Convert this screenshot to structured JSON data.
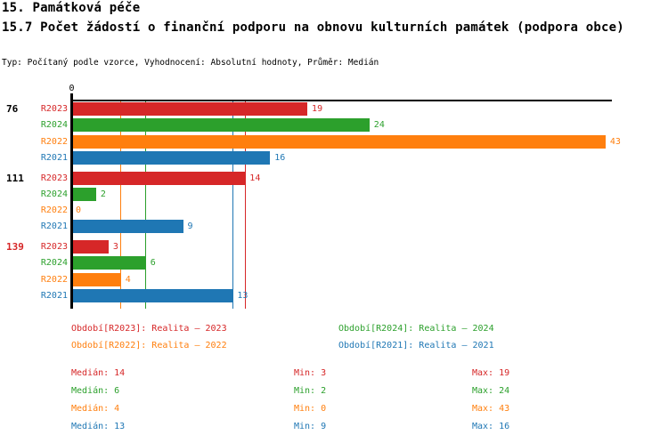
{
  "header": {
    "title_line1": "15. Památková péče",
    "title_line2": "15.7 Počet žádostí o finanční podporu na obnovu kulturních památek (podpora obce)",
    "subtitle": "Typ: Počítaný podle vzorce, Vyhodnocení: Absolutní hodnoty, Průměr: Medián"
  },
  "chart_data": {
    "type": "bar",
    "orientation": "horizontal",
    "x_axis": {
      "zero_tick_label": "0",
      "max_value": 43,
      "grid": "median-lines-only"
    },
    "series_order": [
      "R2023",
      "R2024",
      "R2022",
      "R2021"
    ],
    "series_colors": {
      "R2023": "#d62728",
      "R2024": "#2ca02c",
      "R2022": "#ff7f0e",
      "R2021": "#1f77b4"
    },
    "median_lines": [
      {
        "series": "R2022",
        "value": 4
      },
      {
        "series": "R2024",
        "value": 6
      },
      {
        "series": "R2021",
        "value": 13
      },
      {
        "series": "R2023",
        "value": 14
      }
    ],
    "groups": [
      {
        "label": "76",
        "label_color": "#000000",
        "values": [
          {
            "series": "R2023",
            "value": 19
          },
          {
            "series": "R2024",
            "value": 24
          },
          {
            "series": "R2022",
            "value": 43
          },
          {
            "series": "R2021",
            "value": 16
          }
        ]
      },
      {
        "label": "111",
        "label_color": "#000000",
        "values": [
          {
            "series": "R2023",
            "value": 14
          },
          {
            "series": "R2024",
            "value": 2
          },
          {
            "series": "R2022",
            "value": 0
          },
          {
            "series": "R2021",
            "value": 9
          }
        ]
      },
      {
        "label": "139",
        "label_color": "#d62728",
        "values": [
          {
            "series": "R2023",
            "value": 3
          },
          {
            "series": "R2024",
            "value": 6
          },
          {
            "series": "R2022",
            "value": 4
          },
          {
            "series": "R2021",
            "value": 13
          }
        ]
      }
    ]
  },
  "legend": {
    "items": [
      {
        "series": "R2023",
        "label": "Období[R2023]: Realita – 2023"
      },
      {
        "series": "R2024",
        "label": "Období[R2024]: Realita – 2024"
      },
      {
        "series": "R2022",
        "label": "Období[R2022]: Realita – 2022"
      },
      {
        "series": "R2021",
        "label": "Období[R2021]: Realita – 2021"
      }
    ]
  },
  "stats": {
    "rows": [
      {
        "series": "R2023",
        "median": "Medián: 14",
        "min": "Min: 3",
        "max": "Max: 19"
      },
      {
        "series": "R2024",
        "median": "Medián: 6",
        "min": "Min: 2",
        "max": "Max: 24"
      },
      {
        "series": "R2022",
        "median": "Medián: 4",
        "min": "Min: 0",
        "max": "Max: 43"
      },
      {
        "series": "R2021",
        "median": "Medián: 13",
        "min": "Min: 9",
        "max": "Max: 16"
      }
    ]
  }
}
